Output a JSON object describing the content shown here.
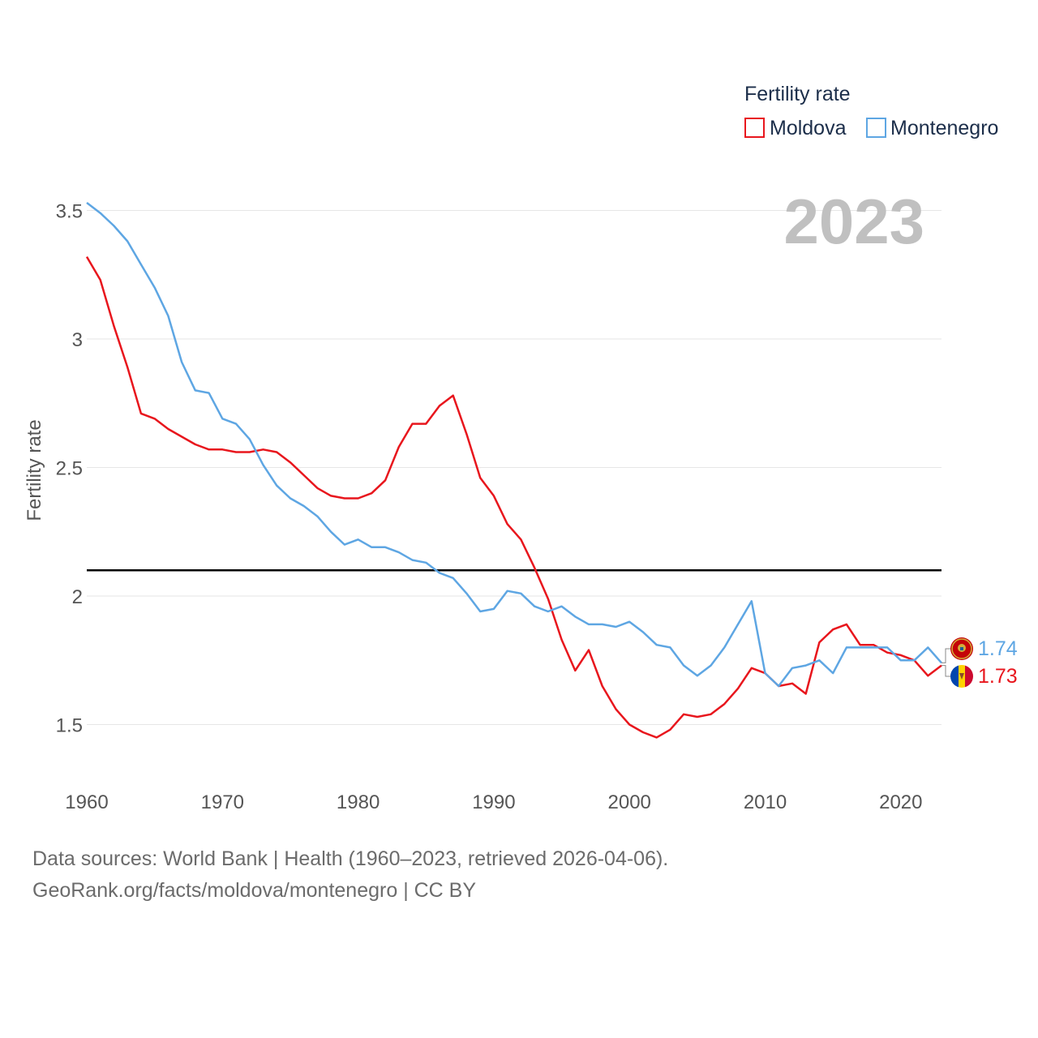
{
  "chart_data": {
    "type": "line",
    "year_label": "2023",
    "ylabel": "Fertility rate",
    "xlim": [
      1960,
      2023
    ],
    "ylim": [
      1.3,
      3.55
    ],
    "x_ticks": [
      1960,
      1970,
      1980,
      1990,
      2000,
      2010,
      2020
    ],
    "y_ticks": [
      {
        "value": 1.5,
        "label": "1.5"
      },
      {
        "value": 2,
        "label": "2"
      },
      {
        "value": 2.5,
        "label": "2.5"
      },
      {
        "value": 3,
        "label": "3"
      },
      {
        "value": 3.5,
        "label": "3.5"
      }
    ],
    "reference_line": 2.1,
    "legend": {
      "title": "Fertility rate",
      "position": "top-right"
    },
    "x": [
      1960,
      1961,
      1962,
      1963,
      1964,
      1965,
      1966,
      1967,
      1968,
      1969,
      1970,
      1971,
      1972,
      1973,
      1974,
      1975,
      1976,
      1977,
      1978,
      1979,
      1980,
      1981,
      1982,
      1983,
      1984,
      1985,
      1986,
      1987,
      1988,
      1989,
      1990,
      1991,
      1992,
      1993,
      1994,
      1995,
      1996,
      1997,
      1998,
      1999,
      2000,
      2001,
      2002,
      2003,
      2004,
      2005,
      2006,
      2007,
      2008,
      2009,
      2010,
      2011,
      2012,
      2013,
      2014,
      2015,
      2016,
      2017,
      2018,
      2019,
      2020,
      2021,
      2022,
      2023
    ],
    "series": [
      {
        "name": "Moldova",
        "color": "#e8161d",
        "end_label": "1.73",
        "values": [
          3.32,
          3.23,
          3.05,
          2.89,
          2.71,
          2.69,
          2.65,
          2.62,
          2.59,
          2.57,
          2.57,
          2.56,
          2.56,
          2.57,
          2.56,
          2.52,
          2.47,
          2.42,
          2.39,
          2.38,
          2.38,
          2.4,
          2.45,
          2.58,
          2.67,
          2.67,
          2.74,
          2.78,
          2.63,
          2.46,
          2.39,
          2.28,
          2.22,
          2.11,
          1.99,
          1.83,
          1.71,
          1.79,
          1.65,
          1.56,
          1.5,
          1.47,
          1.45,
          1.48,
          1.54,
          1.53,
          1.54,
          1.58,
          1.64,
          1.72,
          1.7,
          1.65,
          1.66,
          1.62,
          1.82,
          1.87,
          1.89,
          1.81,
          1.81,
          1.78,
          1.77,
          1.75,
          1.69,
          1.73
        ]
      },
      {
        "name": "Montenegro",
        "color": "#5ea6e3",
        "end_label": "1.74",
        "values": [
          3.53,
          3.49,
          3.44,
          3.38,
          3.29,
          3.2,
          3.09,
          2.91,
          2.8,
          2.79,
          2.69,
          2.67,
          2.61,
          2.51,
          2.43,
          2.38,
          2.35,
          2.31,
          2.25,
          2.2,
          2.22,
          2.19,
          2.19,
          2.17,
          2.14,
          2.13,
          2.09,
          2.07,
          2.01,
          1.94,
          1.95,
          2.02,
          2.01,
          1.96,
          1.94,
          1.96,
          1.92,
          1.89,
          1.89,
          1.88,
          1.9,
          1.86,
          1.81,
          1.8,
          1.73,
          1.69,
          1.73,
          1.8,
          1.89,
          1.98,
          1.7,
          1.65,
          1.72,
          1.73,
          1.75,
          1.7,
          1.8,
          1.8,
          1.8,
          1.8,
          1.75,
          1.75,
          1.8,
          1.74
        ]
      }
    ]
  },
  "footer": {
    "line1": "Data sources: World Bank | Health (1960–2023, retrieved 2026-04-06).",
    "line2": "GeoRank.org/facts/moldova/montenegro | CC BY"
  }
}
